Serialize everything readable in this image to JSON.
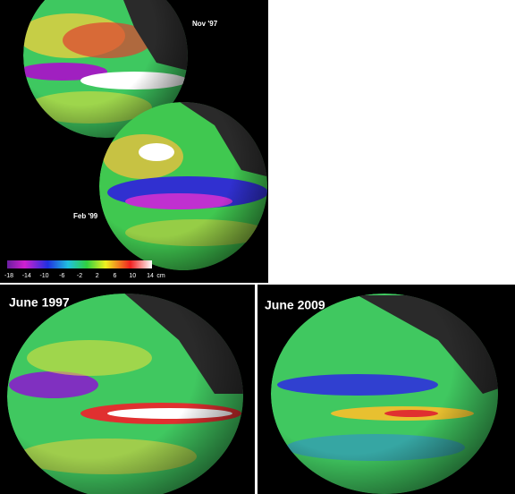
{
  "top_panel": {
    "globes": [
      {
        "label": "Nov '97"
      },
      {
        "label": "Feb '99"
      }
    ],
    "colorbar": {
      "ticks": [
        "-18",
        "-14",
        "-10",
        "-6",
        "-2",
        "2",
        "6",
        "10",
        "14"
      ],
      "unit": "cm"
    }
  },
  "bottom_panels": [
    {
      "label": "June 1997"
    },
    {
      "label": "June 2009"
    }
  ]
}
